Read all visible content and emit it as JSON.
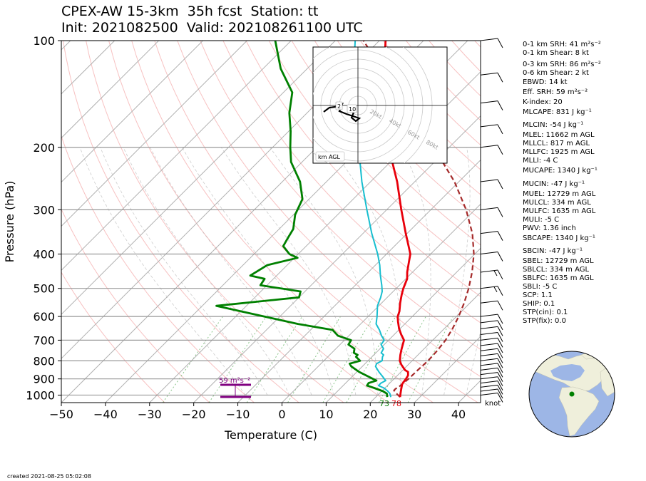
{
  "title": {
    "line1": "CPEX-AW 15-3km  35h fcst  Station: tt",
    "line2": "Init: 2021082500  Valid: 202108261100 UTC"
  },
  "footer": "created 2021-08-25 05:02:08",
  "indices": [
    "0-1 km SRH: 41 m²s⁻²",
    "0-1 km Shear: 8 kt",
    "0-3 km SRH: 86 m²s⁻²",
    "0-6 km Shear: 2 kt",
    "EBWD: 14 kt",
    "Eff. SRH: 59 m²s⁻²",
    "K-index: 20",
    "MLCAPE: 831 J kg⁻¹",
    "MLCIN: -54 J kg⁻¹",
    "MLEL: 11662 m AGL",
    "MLLCL: 817 m AGL",
    "MLLFC: 1925 m AGL",
    "MLLI: -4 C",
    "MUCAPE: 1340 J kg⁻¹",
    "MUCIN: -47 J kg⁻¹",
    "MUEL: 12729 m AGL",
    "MULCL: 334 m AGL",
    "MULFC: 1635 m AGL",
    "MULI: -5 C",
    "PWV: 1.36 inch",
    "SBCAPE: 1340 J kg⁻¹",
    "SBCIN: -47 J kg⁻¹",
    "SBEL: 12729 m AGL",
    "SBLCL: 334 m AGL",
    "SBLFC: 1635 m AGL",
    "SBLI: -5 C",
    "SCP: 1.1",
    "SHIP: 0.1",
    "STP(cin): 0.1",
    "STP(fix): 0.0"
  ],
  "hodograph": {
    "speed_labels": [
      "20kt",
      "40kt",
      "60kt",
      "80kt"
    ],
    "height_labels": [
      "2",
      "10"
    ],
    "legend": "km AGL"
  },
  "skewt": {
    "eff_srh_label": "59 m²s⁻²",
    "surface_dewpoint_label": "73",
    "surface_temp_label": "78",
    "barb_units": "knot",
    "colors": {
      "temperature": "#e8000b",
      "dewpoint": "#008000",
      "wetbulb": "#17becf",
      "parcel": "#a52a2a",
      "eff_layer": "#800080",
      "isotherm": "#b0b0b0",
      "dry_adiabat": "#f4a6a6",
      "mixing_ratio": "#5aae5a"
    }
  },
  "chart_data": {
    "type": "line",
    "xlabel": "Temperature (C)",
    "ylabel": "Pressure (hPa)",
    "xlim": [
      -50,
      45
    ],
    "ylim": [
      1050,
      100
    ],
    "y_scale": "log",
    "xticks": [
      -50,
      -40,
      -30,
      -20,
      -10,
      0,
      10,
      20,
      30,
      40
    ],
    "yticks": [
      100,
      200,
      300,
      400,
      500,
      600,
      700,
      800,
      900,
      1000
    ],
    "series": [
      {
        "name": "temperature",
        "points": [
          [
            1013,
            25.5
          ],
          [
            990,
            24.8
          ],
          [
            970,
            24.2
          ],
          [
            950,
            23.6
          ],
          [
            930,
            23.0
          ],
          [
            900,
            22.7
          ],
          [
            880,
            22.4
          ],
          [
            860,
            21.6
          ],
          [
            850,
            20.5
          ],
          [
            820,
            18.4
          ],
          [
            800,
            17.2
          ],
          [
            770,
            16.0
          ],
          [
            740,
            14.9
          ],
          [
            700,
            13.5
          ],
          [
            675,
            11.6
          ],
          [
            650,
            9.8
          ],
          [
            620,
            7.9
          ],
          [
            600,
            6.7
          ],
          [
            580,
            5.9
          ],
          [
            550,
            4.2
          ],
          [
            520,
            2.6
          ],
          [
            500,
            1.6
          ],
          [
            470,
            0.3
          ],
          [
            450,
            -1.2
          ],
          [
            420,
            -3.2
          ],
          [
            400,
            -4.6
          ],
          [
            350,
            -10.3
          ],
          [
            300,
            -16.7
          ],
          [
            250,
            -24.0
          ],
          [
            200,
            -33.7
          ],
          [
            150,
            -45.2
          ],
          [
            100,
            -58.6
          ]
        ]
      },
      {
        "name": "dewpoint",
        "points": [
          [
            1013,
            22.6
          ],
          [
            990,
            21.7
          ],
          [
            975,
            20.3
          ],
          [
            955,
            17.6
          ],
          [
            940,
            15.4
          ],
          [
            925,
            15.2
          ],
          [
            910,
            16.4
          ],
          [
            885,
            13.5
          ],
          [
            860,
            10.5
          ],
          [
            830,
            7.5
          ],
          [
            815,
            6.5
          ],
          [
            800,
            8.2
          ],
          [
            780,
            6.4
          ],
          [
            770,
            6.3
          ],
          [
            760,
            5.0
          ],
          [
            740,
            4.2
          ],
          [
            720,
            1.9
          ],
          [
            700,
            1.5
          ],
          [
            680,
            -2.5
          ],
          [
            655,
            -5.0
          ],
          [
            630,
            -14.2
          ],
          [
            560,
            -36.8
          ],
          [
            530,
            -20.0
          ],
          [
            510,
            -21.0
          ],
          [
            490,
            -31.5
          ],
          [
            470,
            -32.0
          ],
          [
            460,
            -36.0
          ],
          [
            430,
            -34.5
          ],
          [
            410,
            -29.3
          ],
          [
            400,
            -32.0
          ],
          [
            380,
            -35.2
          ],
          [
            360,
            -36.0
          ],
          [
            340,
            -36.8
          ],
          [
            310,
            -39.6
          ],
          [
            280,
            -41.5
          ],
          [
            250,
            -46.0
          ],
          [
            220,
            -52.5
          ],
          [
            200,
            -56.0
          ],
          [
            180,
            -59.6
          ],
          [
            160,
            -64.0
          ],
          [
            140,
            -68.0
          ],
          [
            120,
            -76.0
          ],
          [
            100,
            -83.6
          ]
        ]
      },
      {
        "name": "wetbulb",
        "points": [
          [
            1013,
            23.4
          ],
          [
            990,
            22.4
          ],
          [
            975,
            21.4
          ],
          [
            955,
            19.8
          ],
          [
            940,
            18.0
          ],
          [
            925,
            18.0
          ],
          [
            910,
            18.5
          ],
          [
            885,
            16.8
          ],
          [
            860,
            15.0
          ],
          [
            830,
            13.0
          ],
          [
            815,
            12.6
          ],
          [
            800,
            13.2
          ],
          [
            780,
            12.4
          ],
          [
            770,
            12.2
          ],
          [
            760,
            11.2
          ],
          [
            740,
            10.8
          ],
          [
            720,
            9.3
          ],
          [
            700,
            9.0
          ],
          [
            680,
            7.4
          ],
          [
            655,
            5.6
          ],
          [
            630,
            3.5
          ],
          [
            600,
            2.0
          ],
          [
            560,
            -0.3
          ],
          [
            530,
            -1.5
          ],
          [
            510,
            -2.5
          ],
          [
            490,
            -4.0
          ],
          [
            460,
            -6.5
          ],
          [
            430,
            -9.0
          ],
          [
            400,
            -12.0
          ],
          [
            350,
            -18.0
          ],
          [
            300,
            -24.5
          ],
          [
            250,
            -32.0
          ],
          [
            200,
            -40.5
          ],
          [
            150,
            -52.0
          ],
          [
            100,
            -65.5
          ]
        ]
      },
      {
        "name": "parcel",
        "points": [
          [
            1013,
            25.5
          ],
          [
            990,
            23.9
          ],
          [
            970,
            22.6
          ],
          [
            960,
            22.6
          ],
          [
            950,
            22.9
          ],
          [
            925,
            23.1
          ],
          [
            900,
            23.3
          ],
          [
            850,
            23.4
          ],
          [
            800,
            23.6
          ],
          [
            750,
            23.4
          ],
          [
            700,
            22.9
          ],
          [
            650,
            21.9
          ],
          [
            600,
            20.5
          ],
          [
            550,
            18.7
          ],
          [
            500,
            16.4
          ],
          [
            450,
            13.5
          ],
          [
            400,
            9.8
          ],
          [
            350,
            4.8
          ],
          [
            300,
            -2.0
          ],
          [
            250,
            -11.0
          ],
          [
            200,
            -23.5
          ],
          [
            150,
            -40.6
          ],
          [
            100,
            -63.6
          ]
        ]
      }
    ],
    "wind_barbs": [
      {
        "p": 1000,
        "spd": 10
      },
      {
        "p": 975,
        "spd": 10
      },
      {
        "p": 950,
        "spd": 10
      },
      {
        "p": 925,
        "spd": 10
      },
      {
        "p": 900,
        "spd": 10
      },
      {
        "p": 875,
        "spd": 10
      },
      {
        "p": 850,
        "spd": 10
      },
      {
        "p": 825,
        "spd": 10
      },
      {
        "p": 800,
        "spd": 10
      },
      {
        "p": 775,
        "spd": 10
      },
      {
        "p": 750,
        "spd": 10
      },
      {
        "p": 725,
        "spd": 10
      },
      {
        "p": 700,
        "spd": 10
      },
      {
        "p": 675,
        "spd": 10
      },
      {
        "p": 650,
        "spd": 10
      },
      {
        "p": 625,
        "spd": 10
      },
      {
        "p": 600,
        "spd": 10
      },
      {
        "p": 550,
        "spd": 10
      },
      {
        "p": 500,
        "spd": 15
      },
      {
        "p": 450,
        "spd": 15
      },
      {
        "p": 400,
        "spd": 10
      },
      {
        "p": 350,
        "spd": 10
      },
      {
        "p": 300,
        "spd": 10
      },
      {
        "p": 250,
        "spd": 10
      },
      {
        "p": 200,
        "spd": 10
      },
      {
        "p": 175,
        "spd": 10
      },
      {
        "p": 150,
        "spd": 10
      },
      {
        "p": 125,
        "spd": 5
      },
      {
        "p": 100,
        "spd": 5
      }
    ]
  }
}
